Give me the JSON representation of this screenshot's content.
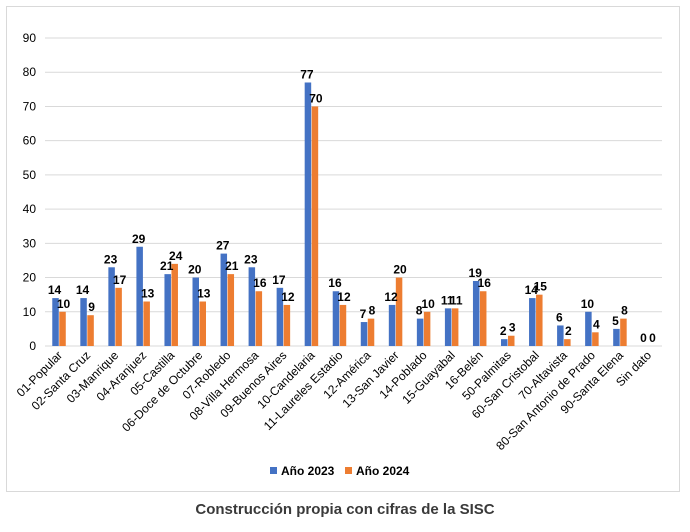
{
  "caption": "Construcción propia con cifras de la SISC",
  "colors": {
    "series_2023": "#4472C4",
    "series_2024": "#ED7D31",
    "grid": "#d9d9d9"
  },
  "chart_data": {
    "type": "bar",
    "title": "",
    "xlabel": "",
    "ylabel": "",
    "ylim": [
      0,
      90
    ],
    "yticks": [
      0,
      10,
      20,
      30,
      40,
      50,
      60,
      70,
      80,
      90
    ],
    "grid": true,
    "legend_position": "bottom",
    "categories": [
      "01-Popular",
      "02-Santa Cruz",
      "03-Manrique",
      "04-Aranjuez",
      "05-Castilla",
      "06-Doce de Octubre",
      "07-Robledo",
      "08-Villa Hermosa",
      "09-Buenos Aires",
      "10-Candelaria",
      "11-Laureles Estadio",
      "12-América",
      "13-San Javier",
      "14-Poblado",
      "15-Guayabal",
      "16-Belén",
      "50-Palmitas",
      "60-San Cristobal",
      "70-Altavista",
      "80-San Antonio de Prado",
      "90-Santa Elena",
      "Sin dato"
    ],
    "series": [
      {
        "name": "Año 2023",
        "values": [
          14,
          14,
          23,
          29,
          21,
          20,
          27,
          23,
          17,
          77,
          16,
          7,
          12,
          8,
          11,
          19,
          2,
          14,
          6,
          10,
          5,
          0
        ]
      },
      {
        "name": "Año 2024",
        "values": [
          10,
          9,
          17,
          13,
          24,
          13,
          21,
          16,
          12,
          70,
          12,
          8,
          20,
          10,
          11,
          16,
          3,
          15,
          2,
          4,
          8,
          0
        ]
      }
    ]
  }
}
